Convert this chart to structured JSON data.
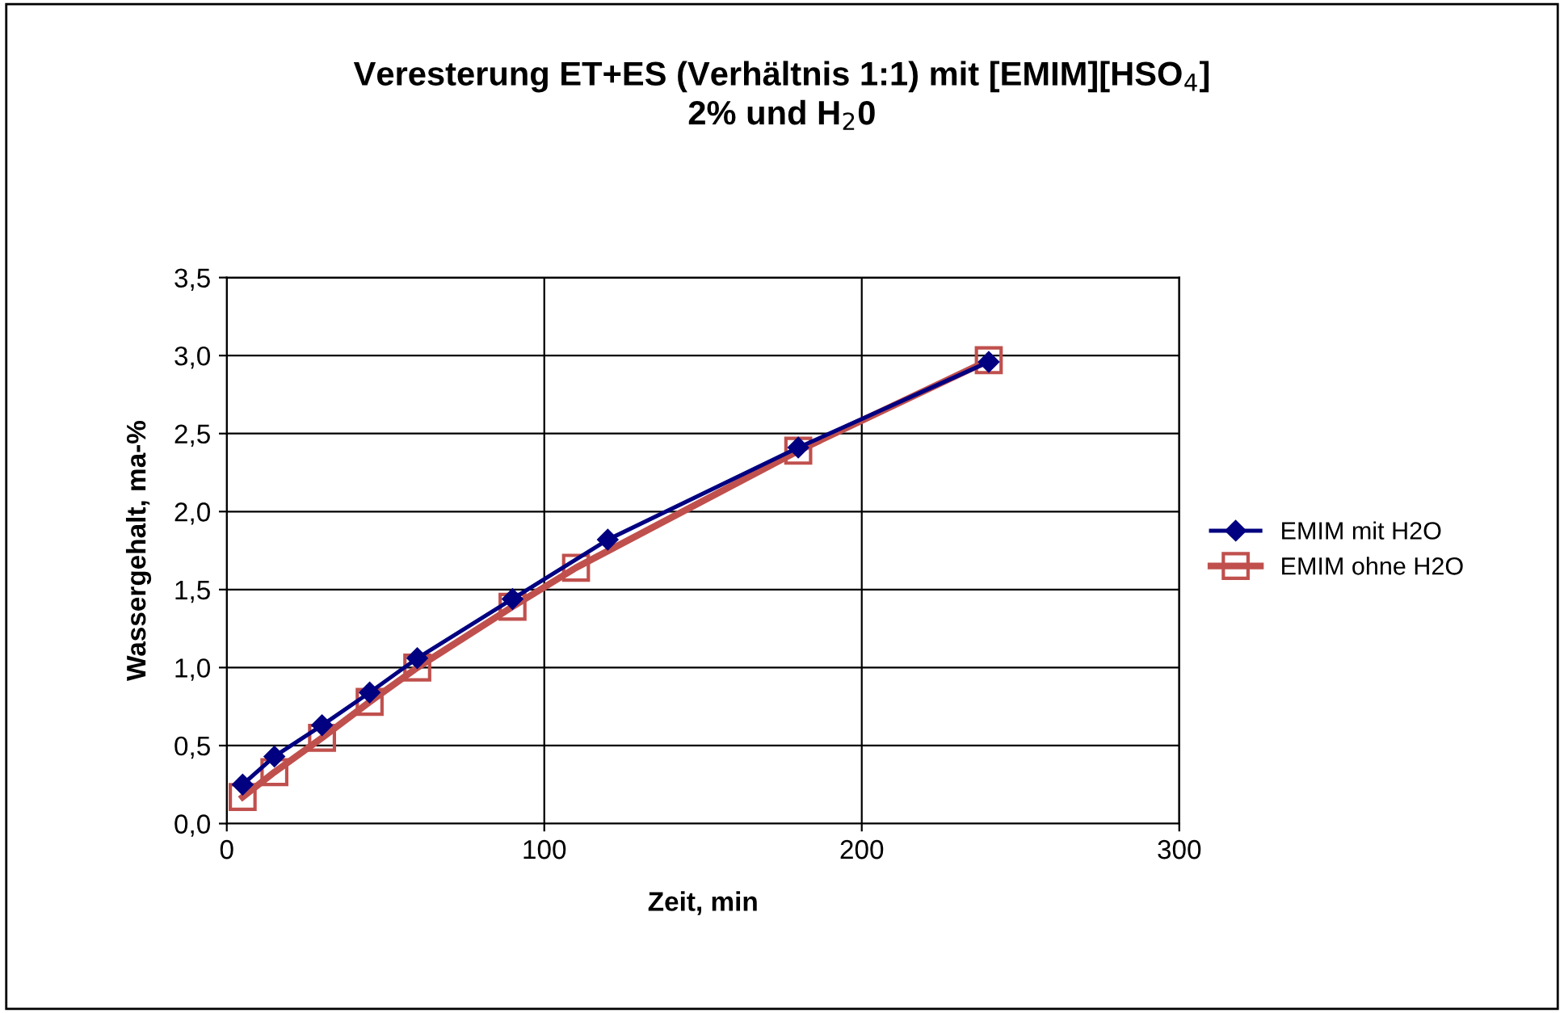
{
  "chart_data": {
    "type": "line",
    "title": "Veresterung ET+ES (Verhältnis 1:1) mit [EMIM][HSO$_{4}$]\n2% und H$_{2}$0",
    "xlabel": "Zeit, min",
    "ylabel": "Wassergehalt, ma-%",
    "series": [
      {
        "name": "EMIM mit H2O",
        "color": "#000080",
        "marker": "diamond",
        "x": [
          5,
          15,
          30,
          45,
          60,
          90,
          120,
          180,
          240
        ],
        "values": [
          0.25,
          0.43,
          0.63,
          0.84,
          1.06,
          1.44,
          1.82,
          2.41,
          2.96
        ]
      },
      {
        "name": "EMIM ohne H2O",
        "color": "#c0504d",
        "marker": "square",
        "x": [
          5,
          15,
          30,
          45,
          60,
          90,
          110,
          180,
          240
        ],
        "values": [
          0.17,
          0.33,
          0.55,
          0.78,
          1.0,
          1.39,
          1.64,
          2.39,
          2.97
        ]
      }
    ],
    "xlim": [
      0,
      300
    ],
    "xticks": [
      0,
      100,
      200,
      300
    ],
    "ylim": [
      0,
      3.5
    ],
    "yticks": [
      {
        "value": 0,
        "label": "0,0"
      },
      {
        "value": 0.5,
        "label": "0,5"
      },
      {
        "value": 1,
        "label": "1,0"
      },
      {
        "value": 1.5,
        "label": "1,5"
      },
      {
        "value": 2,
        "label": "2,0"
      },
      {
        "value": 2.5,
        "label": "2,5"
      },
      {
        "value": 3,
        "label": "3,0"
      },
      {
        "value": 3.5,
        "label": "3,5"
      }
    ],
    "grid": true,
    "legend": "right",
    "line_style": "solid"
  }
}
